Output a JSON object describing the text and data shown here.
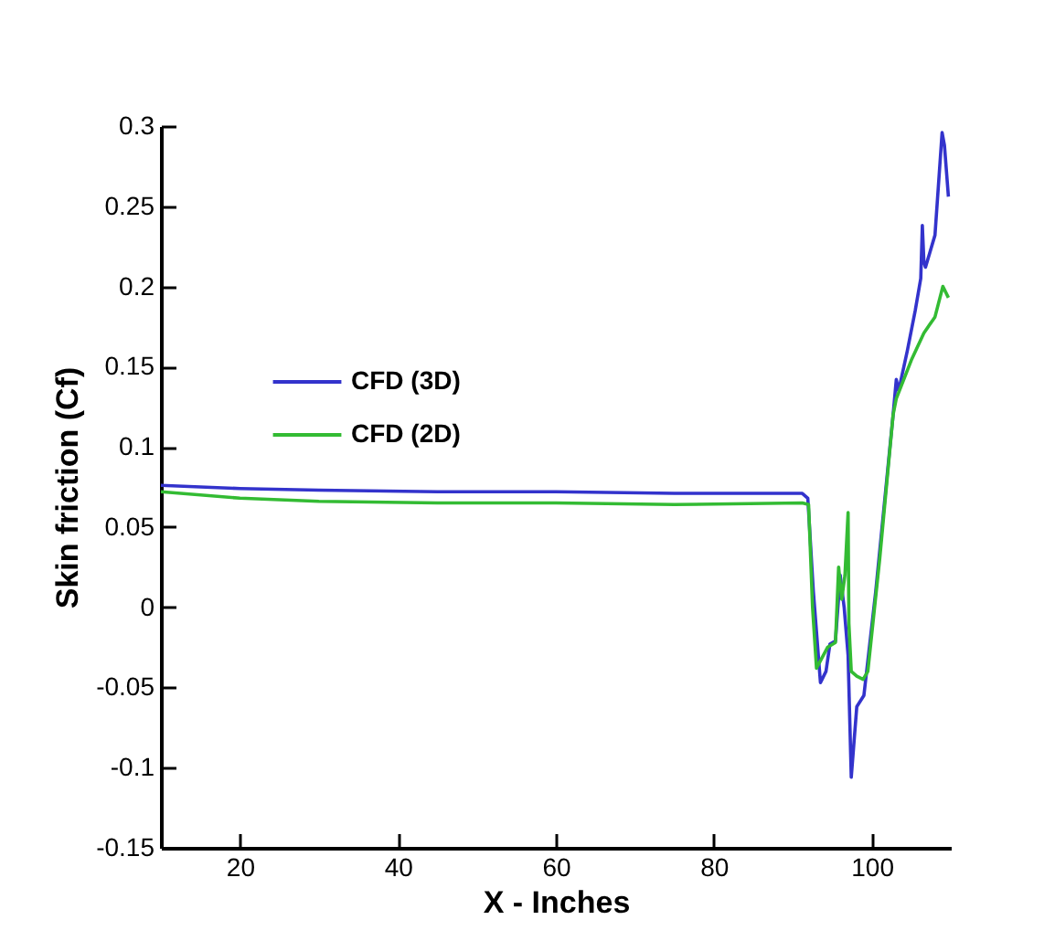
{
  "chart_data": {
    "type": "line",
    "xlabel": "X - Inches",
    "ylabel": "Skin friction (Cf)",
    "xlim": [
      10,
      110
    ],
    "ylim": [
      -0.15,
      0.3
    ],
    "xticks": [
      20,
      40,
      60,
      80,
      100
    ],
    "yticks": [
      -0.15,
      -0.1,
      -0.05,
      0,
      0.05,
      0.1,
      0.15,
      0.2,
      0.25,
      0.3
    ],
    "grid": false,
    "legend": "left",
    "line_style": "solid",
    "marker": "none",
    "series": [
      {
        "name": "CFD (3D)",
        "color": "#3333cc",
        "x": [
          10,
          20,
          30,
          45,
          60,
          75,
          91.2,
          91.9,
          92.6,
          93.5,
          94.2,
          94.7,
          95.4,
          96,
          96.5,
          97,
          97.4,
          98.1,
          99,
          100.5,
          102,
          102.7,
          103.1,
          103.4,
          104.5,
          105.5,
          106.2,
          106.4,
          106.6,
          106.8,
          108,
          108.9,
          109.2,
          109.7
        ],
        "values": [
          0.076,
          0.074,
          0.073,
          0.072,
          0.072,
          0.071,
          0.071,
          0.068,
          0.01,
          -0.047,
          -0.04,
          -0.023,
          -0.021,
          0.02,
          0.0,
          -0.03,
          -0.106,
          -0.062,
          -0.055,
          0.01,
          0.085,
          0.12,
          0.142,
          0.135,
          0.16,
          0.185,
          0.205,
          0.238,
          0.215,
          0.212,
          0.232,
          0.296,
          0.288,
          0.256
        ]
      },
      {
        "name": "CFD (2D)",
        "color": "#33bb33",
        "x": [
          10,
          20,
          30,
          45,
          60,
          75,
          91.2,
          92,
          92.5,
          93,
          94.4,
          95.4,
          95.8,
          96.2,
          96.6,
          97,
          97.1,
          97.4,
          98.1,
          98.9,
          99.5,
          101,
          102.7,
          103.1,
          105,
          106.6,
          108,
          109,
          109.7
        ],
        "values": [
          0.072,
          0.068,
          0.066,
          0.065,
          0.065,
          0.064,
          0.065,
          0.064,
          0.0,
          -0.038,
          -0.025,
          -0.022,
          0.025,
          0.005,
          0.02,
          0.059,
          -0.01,
          -0.04,
          -0.043,
          -0.045,
          -0.04,
          0.03,
          0.12,
          0.13,
          0.154,
          0.171,
          0.181,
          0.2,
          0.193
        ]
      }
    ]
  }
}
